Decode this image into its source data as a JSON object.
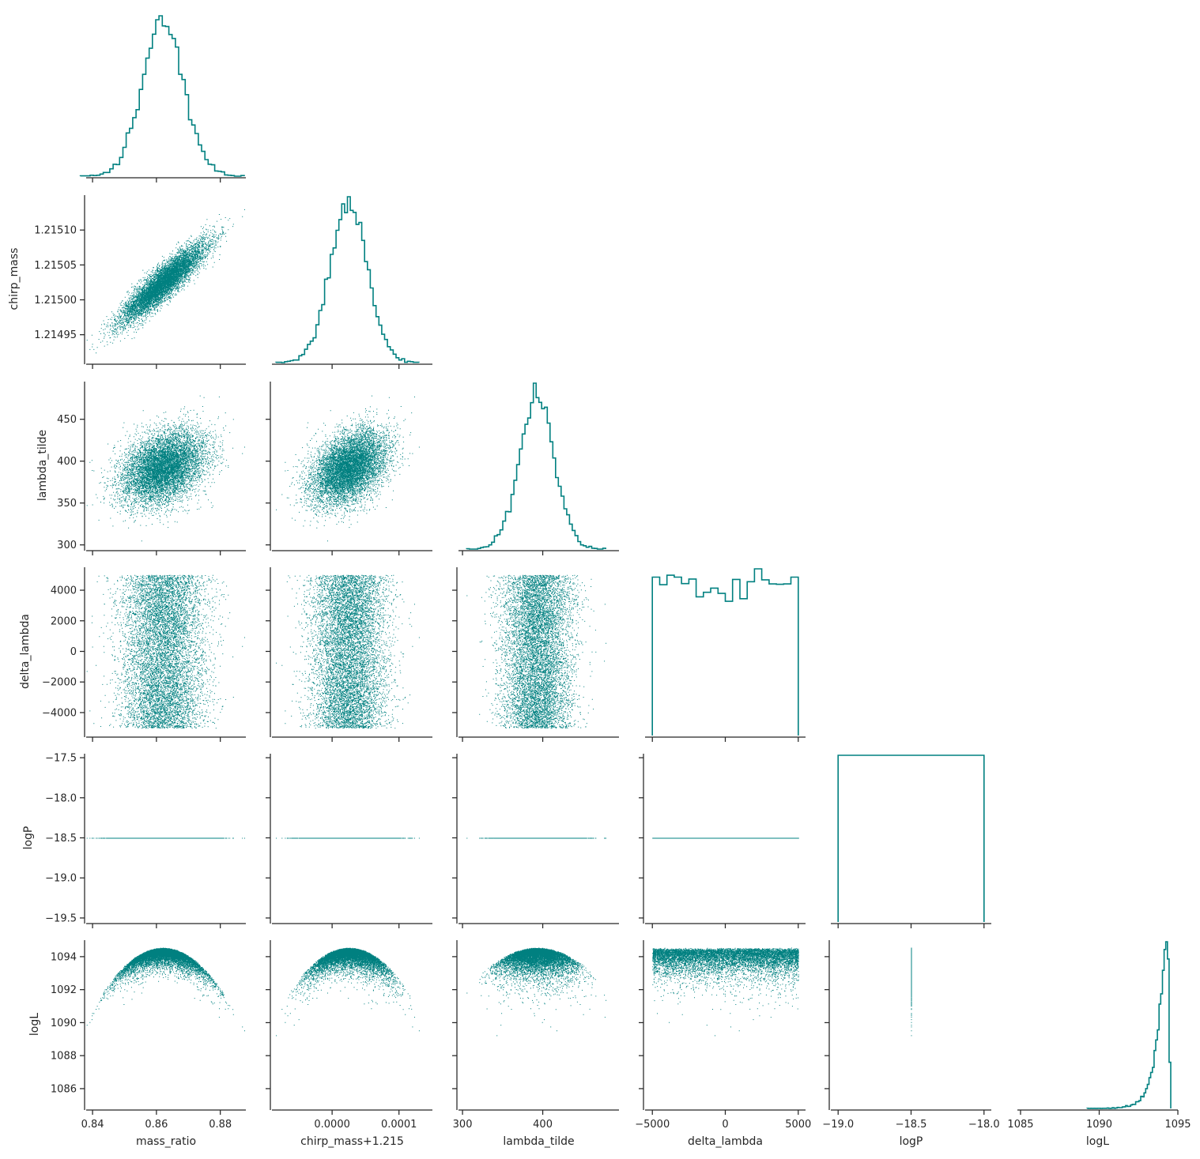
{
  "chart_data": {
    "type": "scatter",
    "layout": "corner",
    "color": "#008080",
    "variables": [
      {
        "name": "mass_ratio",
        "xlabel": "mass_ratio",
        "ylabel": "",
        "range": [
          0.838,
          0.888
        ],
        "ticks": [
          0.84,
          0.86,
          0.88
        ],
        "tick_labels": [
          "0.84",
          "0.86",
          "0.88"
        ],
        "ticks_as_y": [],
        "tick_labels_as_y": [],
        "mean": 0.862,
        "sd": 0.0065,
        "dist": "normal"
      },
      {
        "name": "chirp_mass",
        "xlabel": "chirp_mass+1.215",
        "ylabel": "chirp_mass",
        "range": [
          1.21491,
          1.21515
        ],
        "ticks": [
          1.215,
          1.2151
        ],
        "tick_labels": [
          "0.0000",
          "0.0001"
        ],
        "ticks_as_y": [
          1.21495,
          1.215,
          1.21505,
          1.2151
        ],
        "tick_labels_as_y": [
          "1.21495",
          "1.21500",
          "1.21505",
          "1.21510"
        ],
        "mean": 1.215025,
        "sd": 2.8e-05,
        "dist": "normal"
      },
      {
        "name": "lambda_tilde",
        "xlabel": "lambda_tilde",
        "ylabel": "lambda_tilde",
        "range": [
          295,
          495
        ],
        "ticks": [
          300,
          400
        ],
        "tick_labels": [
          "300",
          "400"
        ],
        "ticks_as_y": [
          300,
          350,
          400,
          450
        ],
        "tick_labels_as_y": [
          "300",
          "350",
          "400",
          "450"
        ],
        "mean": 393,
        "sd": 22,
        "dist": "normal"
      },
      {
        "name": "delta_lambda",
        "xlabel": "delta_lambda",
        "ylabel": "delta_lambda",
        "range": [
          -5500,
          5500
        ],
        "ticks": [
          -5000,
          0,
          5000
        ],
        "tick_labels": [
          "−5000",
          "0",
          "5000"
        ],
        "ticks_as_y": [
          -4000,
          -2000,
          0,
          2000,
          4000
        ],
        "tick_labels_as_y": [
          "−4000",
          "−2000",
          "0",
          "2000",
          "4000"
        ],
        "min": -5000,
        "max": 5000,
        "dist": "uniform"
      },
      {
        "name": "logP",
        "xlabel": "logP",
        "ylabel": "logP",
        "range": [
          -19.05,
          -17.95
        ],
        "range_as_y": [
          -19.55,
          -17.45
        ],
        "ticks": [
          -19.0,
          -18.5,
          -18.0
        ],
        "tick_labels": [
          "−19.0",
          "−18.5",
          "−18.0"
        ],
        "ticks_as_y": [
          -19.5,
          -19.0,
          -18.5,
          -18.0,
          -17.5
        ],
        "tick_labels_as_y": [
          "−19.5",
          "−19.0",
          "−18.5",
          "−18.0",
          "−17.5"
        ],
        "constant": -18.5,
        "dist": "constant"
      },
      {
        "name": "logL",
        "xlabel": "logL",
        "ylabel": "logL",
        "range": [
          1084.8,
          1095.0
        ],
        "ticks": [
          1085,
          1090,
          1095
        ],
        "tick_labels": [
          "1085",
          "1090",
          "1095"
        ],
        "ticks_as_y": [
          1086,
          1088,
          1090,
          1092,
          1094
        ],
        "tick_labels_as_y": [
          "1086",
          "1088",
          "1090",
          "1092",
          "1094"
        ],
        "max": 1094.55,
        "dist": "derived"
      }
    ],
    "n_samples": 8000,
    "grid": false,
    "legend": "none"
  }
}
